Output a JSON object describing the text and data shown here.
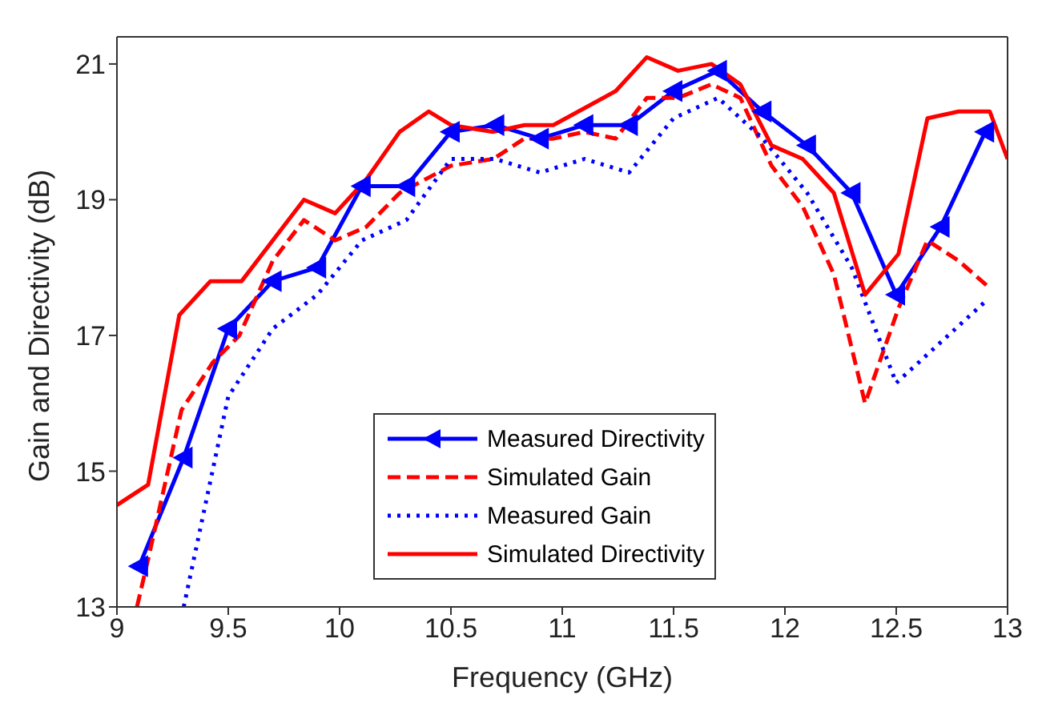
{
  "chart_data": {
    "type": "line",
    "xlabel": "Frequency (GHz)",
    "ylabel": "Gain and Directivity (dB)",
    "xlim": [
      9,
      13
    ],
    "ylim": [
      13,
      21.4
    ],
    "xticks": [
      9,
      9.5,
      10,
      10.5,
      11,
      11.5,
      12,
      12.5,
      13
    ],
    "yticks": [
      13,
      15,
      17,
      19,
      21
    ],
    "grid": false,
    "legend": "bottom",
    "series": [
      {
        "name": "Measured Directivity",
        "color": "#0000ff",
        "line_style": "solid",
        "marker": "triangle",
        "x": [
          9.1,
          9.3,
          9.5,
          9.7,
          9.9,
          10.1,
          10.3,
          10.5,
          10.7,
          10.9,
          11.1,
          11.3,
          11.5,
          11.7,
          11.9,
          12.1,
          12.3,
          12.5,
          12.7,
          12.9
        ],
        "values": [
          13.6,
          15.2,
          17.1,
          17.8,
          18,
          19.2,
          19.2,
          20,
          20.1,
          19.9,
          20.1,
          20.1,
          20.6,
          20.9,
          20.3,
          19.8,
          19.1,
          17.6,
          18.6,
          20
        ]
      },
      {
        "name": "Simulated Gain",
        "color": "#ff0000",
        "line_style": "dashed",
        "marker": "none",
        "x": [
          9.09,
          9.14,
          9.29,
          9.43,
          9.55,
          9.7,
          9.84,
          9.98,
          10.12,
          10.27,
          10.5,
          10.69,
          10.83,
          10.96,
          11.1,
          11.24,
          11.38,
          11.52,
          11.67,
          11.8,
          11.94,
          12.08,
          12.22,
          12.36,
          12.51,
          12.64,
          12.78,
          12.92
        ],
        "values": [
          13,
          13.7,
          15.9,
          16.6,
          17,
          18.1,
          18.7,
          18.4,
          18.6,
          19.1,
          19.5,
          19.6,
          19.9,
          19.9,
          20,
          19.9,
          20.5,
          20.5,
          20.7,
          20.5,
          19.5,
          18.9,
          17.9,
          16,
          17.4,
          18.4,
          18.1,
          17.7
        ]
      },
      {
        "name": "Measured Gain",
        "color": "#0000ff",
        "line_style": "dotted",
        "marker": "none",
        "x": [
          9.3,
          9.5,
          9.7,
          9.9,
          10.1,
          10.3,
          10.5,
          10.7,
          10.9,
          11.1,
          11.3,
          11.5,
          11.7,
          11.9,
          12.1,
          12.3,
          12.5,
          12.7,
          12.9
        ],
        "values": [
          13,
          16.1,
          17.1,
          17.6,
          18.4,
          18.7,
          19.6,
          19.6,
          19.4,
          19.6,
          19.4,
          20.2,
          20.5,
          19.9,
          19.1,
          18,
          16.3,
          16.9,
          17.5
        ]
      },
      {
        "name": "Simulated Directivity",
        "color": "#ff0000",
        "line_style": "solid",
        "marker": "none",
        "x": [
          9,
          9.14,
          9.28,
          9.42,
          9.56,
          9.84,
          9.98,
          10.12,
          10.27,
          10.4,
          10.5,
          10.69,
          10.83,
          10.96,
          11.24,
          11.38,
          11.52,
          11.67,
          11.8,
          11.94,
          12.08,
          12.22,
          12.36,
          12.51,
          12.64,
          12.78,
          12.92,
          13
        ],
        "values": [
          14.5,
          14.8,
          17.3,
          17.8,
          17.8,
          19,
          18.8,
          19.3,
          20,
          20.3,
          20.1,
          20,
          20.1,
          20.1,
          20.6,
          21.1,
          20.9,
          21,
          20.7,
          19.8,
          19.6,
          19.1,
          17.6,
          18.2,
          20.2,
          20.3,
          20.3,
          19.6
        ]
      }
    ]
  }
}
